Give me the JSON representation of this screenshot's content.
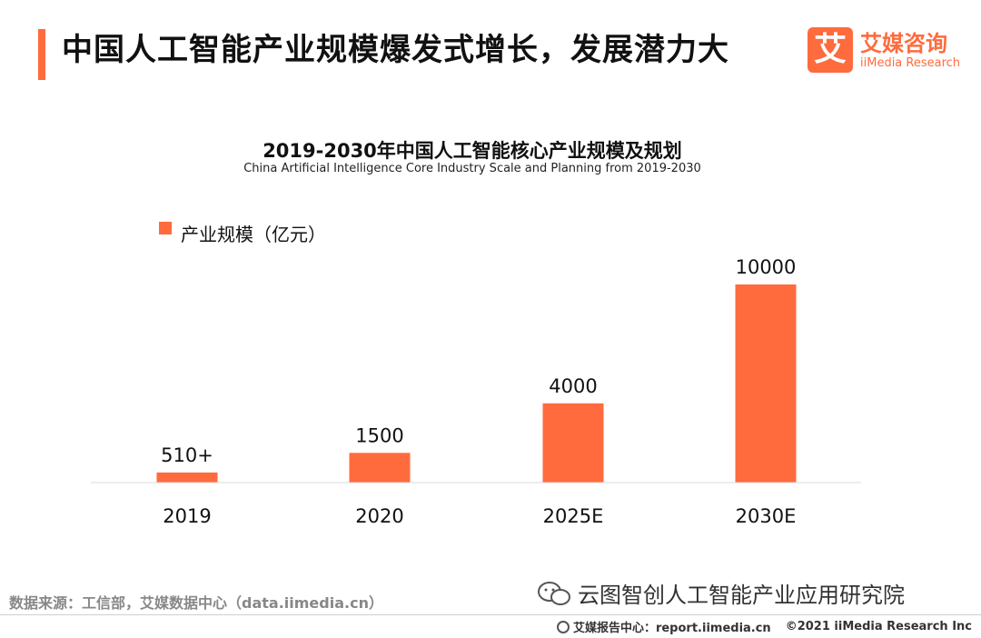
{
  "header": {
    "title": "中国人工智能产业规模爆发式增长，发展潜力大",
    "logo_mark": "艾",
    "logo_cn": "艾媒咨询",
    "logo_en": "iiMedia Research"
  },
  "chart_data": {
    "type": "bar",
    "title": "2019-2030年中国人工智能核心产业规模及规划",
    "subtitle": "China Artificial Intelligence Core Industry Scale and Planning from 2019-2030",
    "categories": [
      "2019",
      "2020",
      "2025E",
      "2030E"
    ],
    "values": [
      510,
      1500,
      4000,
      10000
    ],
    "value_labels": [
      "510+",
      "1500",
      "4000",
      "10000"
    ],
    "series_name": "产业规模（亿元）",
    "color": "#ff6b3d",
    "ylim": [
      0,
      10000
    ],
    "legend_position": "top-left",
    "grid": false
  },
  "footer": {
    "source": "数据来源：工信部，艾媒数据中心（data.iimedia.cn）",
    "watermark": "云图智创人工智能产业应用研究院",
    "report_center": "艾媒报告中心：report.iimedia.cn",
    "copyright": "©2021  iiMedia Research  Inc"
  },
  "colors": {
    "accent": "#ff6b3d"
  }
}
